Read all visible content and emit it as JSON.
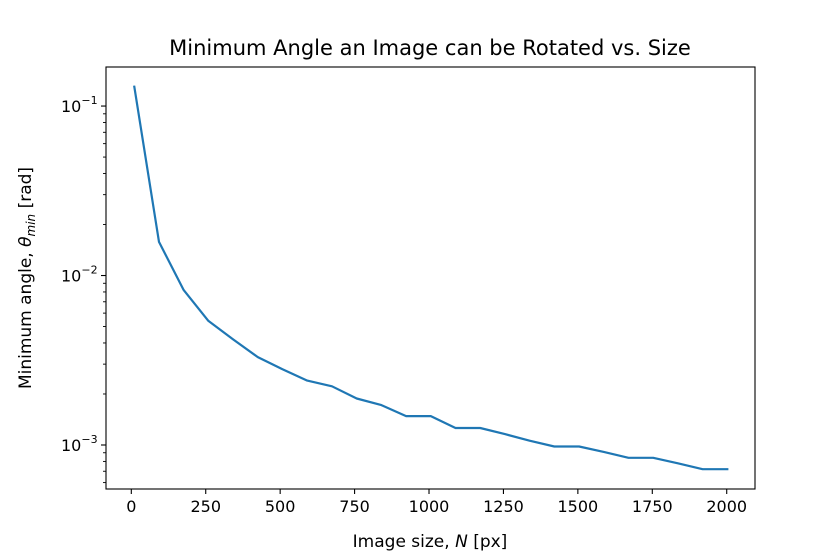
{
  "chart_data": {
    "type": "line",
    "title": "Minimum Angle an Image can be Rotated vs. Size",
    "xlabel": {
      "prefix": "Image size, ",
      "symbol": "N",
      "suffix": " [px]"
    },
    "ylabel": {
      "prefix": "Minimum angle, ",
      "symbol": "θ",
      "subscript": "min",
      "suffix": " [rad]"
    },
    "yscale": "log",
    "xlim": [
      -85,
      2095
    ],
    "ylim": [
      0.00055,
      0.17
    ],
    "xticks": [
      0,
      250,
      500,
      750,
      1000,
      1250,
      1500,
      1750,
      2000
    ],
    "yticks": [
      {
        "value": 0.001,
        "base": "10",
        "exp": "−3"
      },
      {
        "value": 0.01,
        "base": "10",
        "exp": "−2"
      },
      {
        "value": 0.1,
        "base": "10",
        "exp": "−1"
      }
    ],
    "grid": false,
    "line_color": "#1f77b4",
    "series": [
      {
        "x": [
          10,
          93,
          176,
          259,
          342,
          425,
          508,
          591,
          674,
          757,
          840,
          923,
          1006,
          1089,
          1172,
          1255,
          1338,
          1421,
          1504,
          1587,
          1670,
          1753,
          1836,
          1919,
          2002
        ],
        "values": [
          0.13,
          0.0158,
          0.0082,
          0.0054,
          0.0042,
          0.0033,
          0.0028,
          0.0024,
          0.00222,
          0.00188,
          0.00172,
          0.00148,
          0.00148,
          0.00126,
          0.00126,
          0.00116,
          0.00106,
          0.00098,
          0.00098,
          0.00091,
          0.00084,
          0.00084,
          0.00078,
          0.00072,
          0.00072
        ]
      }
    ]
  }
}
